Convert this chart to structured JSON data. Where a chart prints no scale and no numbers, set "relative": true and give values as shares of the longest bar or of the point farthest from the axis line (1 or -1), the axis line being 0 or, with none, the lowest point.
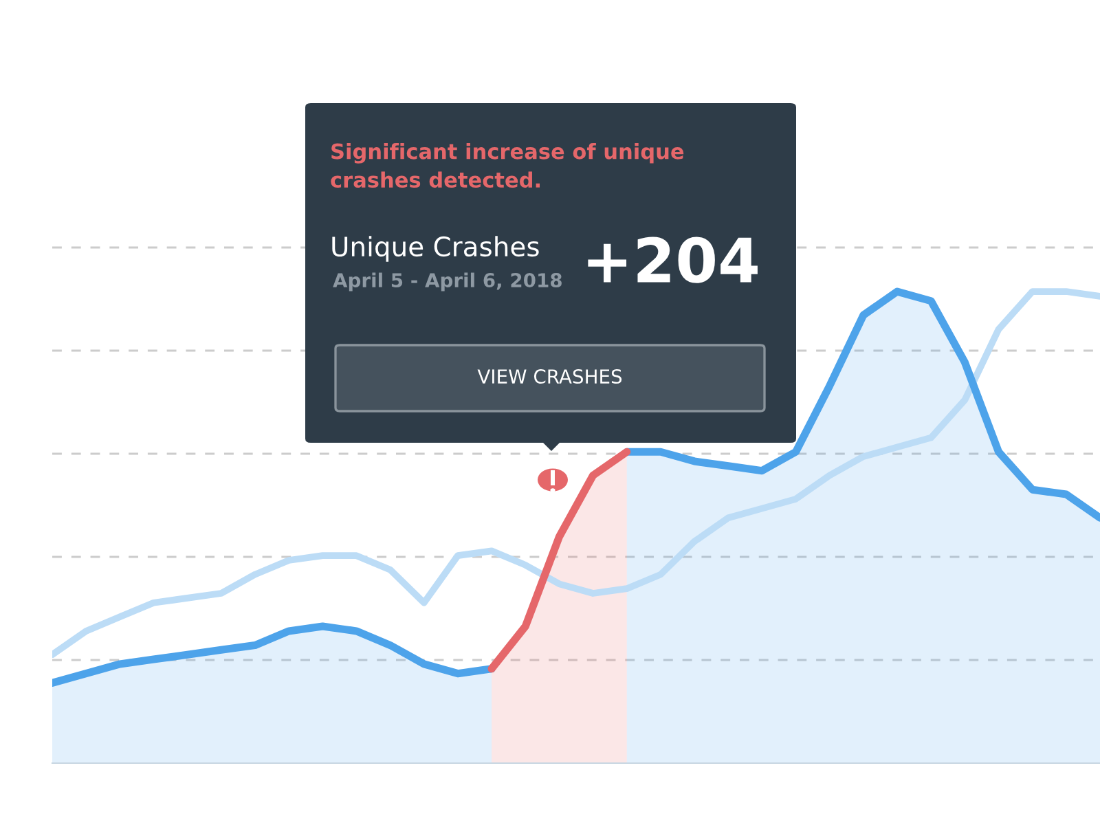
{
  "chart_data": {
    "type": "line",
    "relative": true,
    "grid": "y",
    "categories": [
      null,
      null,
      null,
      null,
      null,
      null,
      null,
      null,
      null,
      null,
      null,
      null,
      null,
      null,
      null,
      null,
      null,
      null,
      null,
      null,
      null,
      null,
      null,
      null,
      null,
      null,
      null,
      null,
      null,
      null,
      null,
      null
    ],
    "series": [
      {
        "color": "#bcdcf6",
        "values": [
          0.23,
          0.28,
          0.31,
          0.34,
          0.35,
          0.36,
          0.4,
          0.43,
          0.44,
          0.44,
          0.41,
          0.34,
          0.44,
          0.45,
          0.42,
          0.38,
          0.36,
          0.37,
          0.4,
          0.47,
          0.52,
          0.54,
          0.56,
          0.61,
          0.65,
          0.67,
          0.69,
          0.77,
          0.92,
          1.0,
          1.0,
          0.99
        ]
      },
      {
        "type": "area",
        "color": "#4da3ea",
        "values": [
          0.17,
          0.19,
          0.21,
          0.22,
          0.23,
          0.24,
          0.25,
          0.28,
          0.29,
          0.28,
          0.25,
          0.21,
          0.19,
          0.2,
          null,
          null,
          null,
          0.66,
          0.66,
          0.64,
          0.63,
          0.62,
          0.66,
          0.8,
          0.95,
          1.0,
          0.98,
          0.85,
          0.66,
          0.58,
          0.57,
          0.52
        ]
      },
      {
        "type": "area",
        "color": "#e5676a",
        "values": [
          null,
          null,
          null,
          null,
          null,
          null,
          null,
          null,
          null,
          null,
          null,
          null,
          null,
          0.2,
          0.29,
          0.48,
          0.61,
          0.66,
          null,
          null,
          null,
          null,
          null,
          null,
          null,
          null,
          null,
          null,
          null,
          null,
          null,
          null
        ]
      }
    ],
    "annotations": [
      "Significant increase of unique crashes detected.",
      "Unique Crashes",
      "April 5 - April 6, 2018",
      "+204",
      "VIEW CRASHES"
    ]
  }
}
